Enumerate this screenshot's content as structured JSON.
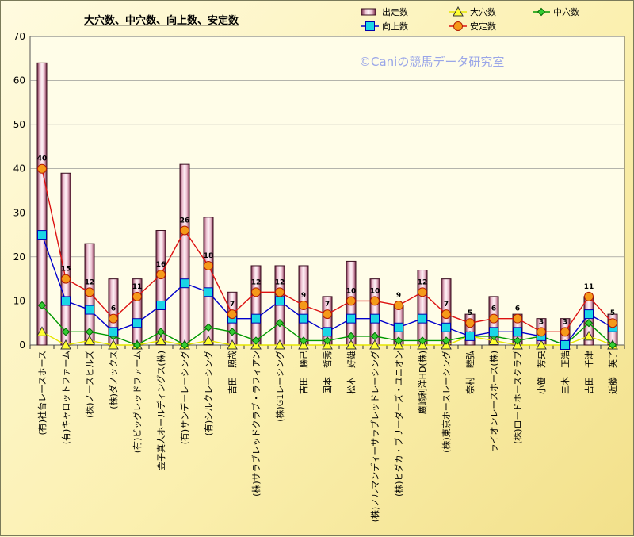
{
  "chart_data": {
    "type": "bar",
    "title": "大穴数、中穴数、向上数、安定数",
    "copyright": "©Caniの競馬データ研究室",
    "ylim": [
      0,
      70
    ],
    "yticks": [
      0,
      10,
      20,
      30,
      40,
      50,
      60,
      70
    ],
    "grid": true,
    "legend_position": "top-right",
    "categories": [
      "(有)社台レースホース",
      "(有)キャロットファーム",
      "(株)ノースヒルズ",
      "(株)ダノックス",
      "(有)ビッグレッドファーム",
      "金子真人ホールディングス(株)",
      "(有)サンデーレーシング",
      "(有)シルクレーシング",
      "吉田　照哉",
      "(株)サラブレッドクラブ・ラフィアン",
      "(株)G1レーシング",
      "吉田　勝己",
      "国本　哲秀",
      "松本　好雄",
      "(株)ノルマンディーサラブレッドレーシング",
      "(株)ヒダカ・ブリーダーズ・ユニオン",
      "廣崎利洋HD(株)",
      "(株)東京ホースレーシング",
      "奈村　睦弘",
      "ライオンレースホース(株)",
      "(株)ロードホースクラブ",
      "小笹　芳央",
      "三木　正浩",
      "吉田　千津",
      "近藤　英子"
    ],
    "series": [
      {
        "name": "出走数",
        "kind": "bar",
        "color": "#e9c9d6",
        "values": [
          64,
          39,
          23,
          15,
          15,
          26,
          41,
          29,
          12,
          18,
          18,
          18,
          11,
          19,
          15,
          9,
          17,
          15,
          7,
          11,
          7,
          6,
          6,
          11,
          7
        ]
      },
      {
        "name": "大穴数",
        "kind": "line",
        "color": "#e6e600",
        "marker": "triangle",
        "values": [
          3,
          0,
          1,
          0,
          0,
          1,
          0,
          1,
          0,
          0,
          0,
          0,
          0,
          0,
          0,
          0,
          0,
          0,
          2,
          1,
          0,
          0,
          0,
          2,
          0
        ]
      },
      {
        "name": "中穴数",
        "kind": "line",
        "color": "#009900",
        "marker": "diamond",
        "values": [
          9,
          3,
          3,
          2,
          0,
          3,
          0,
          4,
          3,
          1,
          5,
          1,
          1,
          2,
          2,
          1,
          1,
          1,
          2,
          2,
          1,
          2,
          0,
          5,
          0
        ]
      },
      {
        "name": "向上数",
        "kind": "line",
        "color": "#0000cc",
        "marker": "square",
        "values": [
          25,
          10,
          8,
          3,
          5,
          9,
          14,
          12,
          6,
          6,
          10,
          6,
          3,
          6,
          6,
          4,
          6,
          4,
          2,
          3,
          3,
          2,
          0,
          7,
          4
        ]
      },
      {
        "name": "安定数",
        "kind": "line",
        "color": "#dd1111",
        "marker": "circle",
        "values": [
          40,
          15,
          12,
          6,
          11,
          16,
          26,
          18,
          7,
          12,
          12,
          9,
          7,
          10,
          10,
          9,
          12,
          7,
          5,
          6,
          6,
          3,
          3,
          11,
          5
        ]
      }
    ]
  }
}
